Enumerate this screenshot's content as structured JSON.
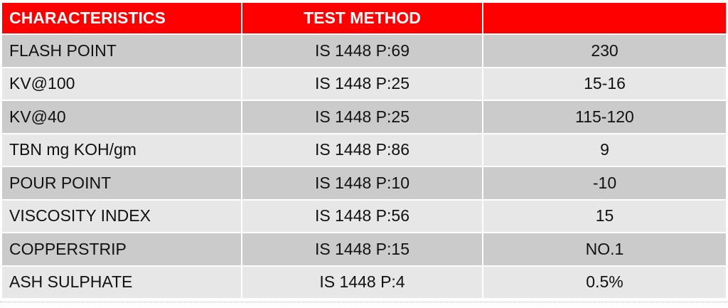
{
  "header": {
    "characteristics": "CHARACTERISTICS",
    "test_method": "TEST METHOD",
    "value": ""
  },
  "rows": [
    {
      "characteristic": "FLASH POINT",
      "method": "IS 1448 P:69",
      "value": "230"
    },
    {
      "characteristic": "KV@100",
      "method": "IS 1448 P:25",
      "value": "15-16"
    },
    {
      "characteristic": "KV@40",
      "method": "IS 1448 P:25",
      "value": "115-120"
    },
    {
      "characteristic": "TBN mg KOH/gm",
      "method": "IS 1448 P:86",
      "value": "9"
    },
    {
      "characteristic": "POUR POINT",
      "method": "IS 1448 P:10",
      "value": "-10"
    },
    {
      "characteristic": "VISCOSITY INDEX",
      "method": "IS 1448 P:56",
      "value": "15"
    },
    {
      "characteristic": "COPPERSTRIP",
      "method": "IS 1448 P:15",
      "value": "NO.1"
    },
    {
      "characteristic": "ASH SULPHATE",
      "method": "IS 1448 P:4",
      "value": "0.5%"
    }
  ],
  "colors": {
    "header": "#ff0000",
    "row_dark": "#cbcbcb",
    "row_light": "#e7e7e7"
  }
}
